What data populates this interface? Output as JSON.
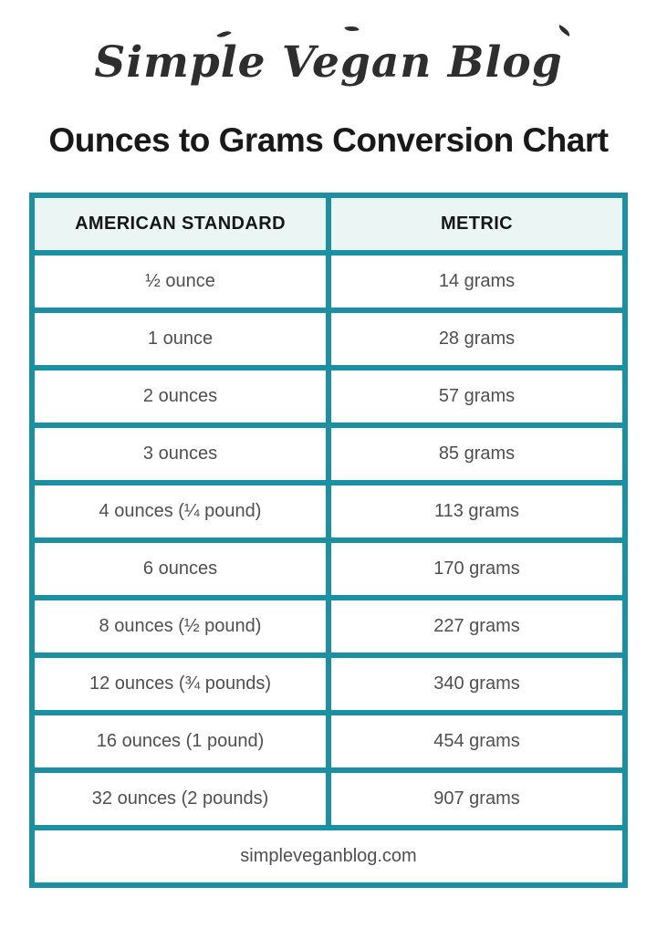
{
  "logo": {
    "text": "Simple Vegan Blog"
  },
  "title": "Ounces to Grams Conversion Chart",
  "table": {
    "columns": [
      "AMERICAN STANDARD",
      "METRIC"
    ],
    "rows": [
      {
        "american": "½ ounce",
        "metric": "14 grams"
      },
      {
        "american": "1 ounce",
        "metric": "28 grams"
      },
      {
        "american": "2 ounces",
        "metric": "57 grams"
      },
      {
        "american": "3 ounces",
        "metric": "85 grams"
      },
      {
        "american": "4 ounces (¼ pound)",
        "metric": "113 grams"
      },
      {
        "american": "6 ounces",
        "metric": "170 grams"
      },
      {
        "american": "8 ounces (½ pound)",
        "metric": "227 grams"
      },
      {
        "american": "12 ounces (¾ pounds)",
        "metric": "340 grams"
      },
      {
        "american": "16 ounces (1 pound)",
        "metric": "454 grams"
      },
      {
        "american": "32 ounces (2 pounds)",
        "metric": "907 grams"
      }
    ]
  },
  "footer": {
    "url": "simpleveganblog.com"
  },
  "colors": {
    "teal_border": "#1b90a3",
    "header_bg": "#ebf5f4",
    "body_text": "#4f4f4f",
    "title_text": "#191919"
  }
}
